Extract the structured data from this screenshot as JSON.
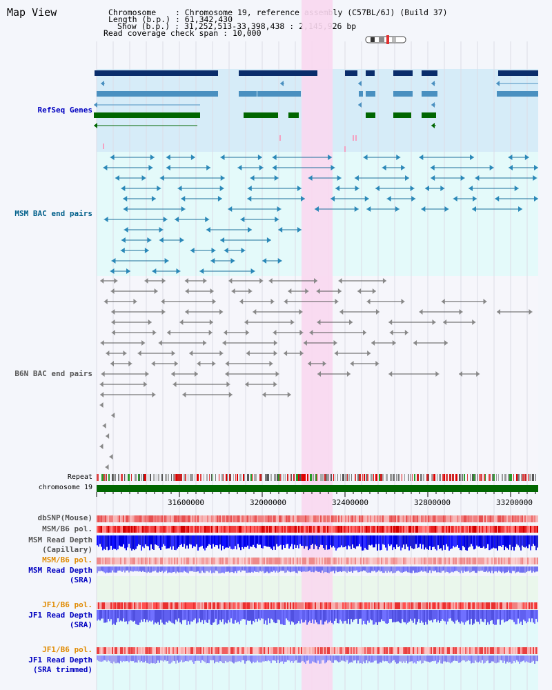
{
  "title": "Map View",
  "info": {
    "chromosome_label": "Chromosome",
    "chromosome_value": "Chromosome 19, reference assembly (C57BL/6J) (Build 37)",
    "length_label": "Length (b.p.)",
    "length_value": "61,342,430",
    "show_label": "Show (b.p.)",
    "show_value": "31,252,513-33,398,438 : 2,145,926 bp",
    "coverage_label": "Read coverage check span",
    "coverage_value": "10,000"
  },
  "tracks": {
    "refseq": "RefSeq Genes",
    "msm_bac": "MSM BAC end pairs",
    "b6n_bac": "B6N BAC end pairs",
    "repeat": "Repeat",
    "chromosome": "chromosome 19",
    "dbsnp": "dbSNP(Mouse)",
    "msm_b6_pol_1": "MSM/B6 pol.",
    "msm_depth_cap": "MSM Read Depth\n(Capillary)",
    "msm_b6_pol_2": "MSM/B6 pol.",
    "msm_depth_sra": "MSM Read Depth\n(SRA)",
    "jf1_b6_pol_1": "JF1/B6 pol.",
    "jf1_depth_sra": "JF1 Read Depth\n(SRA)",
    "jf1_b6_pol_2": "JF1/B6 pol.",
    "jf1_depth_trim": "JF1 Read Depth\n(SRA trimmed)"
  },
  "axis_ticks": [
    "31600000",
    "32000000",
    "32400000",
    "32800000",
    "33200000"
  ],
  "colors": {
    "refseq_bg": "#d6ecf8",
    "msm_bac_bg": "#e4fafa",
    "highlight": "#f9d8f0",
    "gene_dark": "#0a2d6b",
    "gene_mid": "#4a90c0",
    "gene_green": "#006600",
    "chromosome_bar": "#006600"
  }
}
